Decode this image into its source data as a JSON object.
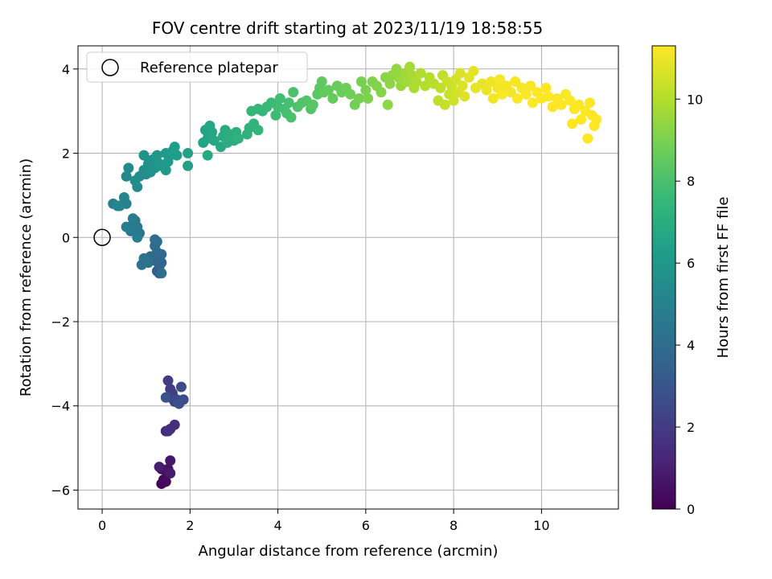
{
  "chart_data": {
    "type": "scatter",
    "title": "FOV centre drift starting at 2023/11/19 18:58:55",
    "xlabel": "Angular distance from reference (arcmin)",
    "ylabel": "Rotation from reference (arcmin)",
    "colorbar_label": "Hours from first FF file",
    "colormap": "viridis",
    "xlim": [
      -0.55,
      11.75
    ],
    "ylim": [
      -6.45,
      4.55
    ],
    "clim": [
      0,
      11.3
    ],
    "xticks": [
      0,
      2,
      4,
      6,
      8,
      10
    ],
    "xtick_labels": [
      "0",
      "2",
      "4",
      "6",
      "8",
      "10"
    ],
    "yticks": [
      -6,
      -4,
      -2,
      0,
      2,
      4
    ],
    "ytick_labels": [
      "−6",
      "−4",
      "−2",
      "0",
      "2",
      "4"
    ],
    "cticks": [
      0,
      2,
      4,
      6,
      8,
      10
    ],
    "ctick_labels": [
      "0",
      "2",
      "4",
      "6",
      "8",
      "10"
    ],
    "grid": true,
    "legend": {
      "placement": "top-left",
      "entries": [
        {
          "label": "Reference platepar",
          "marker": "open-circle"
        }
      ]
    },
    "reference_point": {
      "x": 0,
      "y": 0
    },
    "points": [
      {
        "x": 1.35,
        "y": -5.85,
        "t": 0.1
      },
      {
        "x": 1.4,
        "y": -5.75,
        "t": 0.2
      },
      {
        "x": 1.45,
        "y": -5.8,
        "t": 0.3
      },
      {
        "x": 1.35,
        "y": -5.5,
        "t": 0.4
      },
      {
        "x": 1.45,
        "y": -5.55,
        "t": 0.5
      },
      {
        "x": 1.5,
        "y": -5.5,
        "t": 0.6
      },
      {
        "x": 1.55,
        "y": -5.3,
        "t": 0.7
      },
      {
        "x": 1.55,
        "y": -5.6,
        "t": 0.8
      },
      {
        "x": 1.3,
        "y": -5.45,
        "t": 0.9
      },
      {
        "x": 1.45,
        "y": -4.6,
        "t": 1.3
      },
      {
        "x": 1.55,
        "y": -4.55,
        "t": 1.4
      },
      {
        "x": 1.65,
        "y": -4.45,
        "t": 1.5
      },
      {
        "x": 1.5,
        "y": -4.6,
        "t": 1.6
      },
      {
        "x": 1.5,
        "y": -3.4,
        "t": 2.0
      },
      {
        "x": 1.55,
        "y": -3.6,
        "t": 2.1
      },
      {
        "x": 1.6,
        "y": -3.7,
        "t": 2.2
      },
      {
        "x": 1.55,
        "y": -3.8,
        "t": 2.3
      },
      {
        "x": 1.65,
        "y": -3.9,
        "t": 2.4
      },
      {
        "x": 1.7,
        "y": -3.85,
        "t": 2.5
      },
      {
        "x": 1.8,
        "y": -3.55,
        "t": 2.6
      },
      {
        "x": 1.85,
        "y": -3.85,
        "t": 2.7
      },
      {
        "x": 1.75,
        "y": -3.95,
        "t": 2.8
      },
      {
        "x": 1.45,
        "y": -3.8,
        "t": 2.9
      },
      {
        "x": 1.3,
        "y": -0.85,
        "t": 3.3
      },
      {
        "x": 1.25,
        "y": -0.8,
        "t": 3.4
      },
      {
        "x": 1.3,
        "y": -0.7,
        "t": 3.5
      },
      {
        "x": 1.35,
        "y": -0.6,
        "t": 3.6
      },
      {
        "x": 1.2,
        "y": -0.55,
        "t": 3.7
      },
      {
        "x": 1.3,
        "y": -0.45,
        "t": 3.75
      },
      {
        "x": 1.35,
        "y": -0.4,
        "t": 3.8
      },
      {
        "x": 1.1,
        "y": -0.45,
        "t": 3.85
      },
      {
        "x": 1.25,
        "y": -0.35,
        "t": 3.9
      },
      {
        "x": 1.2,
        "y": -0.2,
        "t": 3.95
      },
      {
        "x": 1.25,
        "y": -0.1,
        "t": 4.0
      },
      {
        "x": 1.2,
        "y": -0.05,
        "t": 4.05
      },
      {
        "x": 1.35,
        "y": -0.85,
        "t": 4.1
      },
      {
        "x": 0.9,
        "y": -0.65,
        "t": 4.2
      },
      {
        "x": 0.95,
        "y": -0.5,
        "t": 4.25
      },
      {
        "x": 1.05,
        "y": -0.6,
        "t": 4.3
      },
      {
        "x": 0.85,
        "y": 0.1,
        "t": 4.4
      },
      {
        "x": 0.8,
        "y": 0.25,
        "t": 4.5
      },
      {
        "x": 0.75,
        "y": 0.4,
        "t": 4.55
      },
      {
        "x": 0.7,
        "y": 0.3,
        "t": 4.6
      },
      {
        "x": 0.65,
        "y": 0.15,
        "t": 4.65
      },
      {
        "x": 0.55,
        "y": 0.25,
        "t": 4.7
      },
      {
        "x": 0.7,
        "y": 0.45,
        "t": 4.75
      },
      {
        "x": 0.8,
        "y": 0.0,
        "t": 4.8
      },
      {
        "x": 0.25,
        "y": 0.8,
        "t": 4.9
      },
      {
        "x": 0.4,
        "y": 0.75,
        "t": 5.0
      },
      {
        "x": 0.55,
        "y": 0.8,
        "t": 5.05
      },
      {
        "x": 0.5,
        "y": 0.95,
        "t": 5.1
      },
      {
        "x": 0.35,
        "y": 0.75,
        "t": 5.15
      },
      {
        "x": 0.55,
        "y": 1.45,
        "t": 5.3
      },
      {
        "x": 0.6,
        "y": 1.65,
        "t": 5.35
      },
      {
        "x": 0.8,
        "y": 1.2,
        "t": 5.4
      },
      {
        "x": 0.85,
        "y": 1.45,
        "t": 5.45
      },
      {
        "x": 0.75,
        "y": 1.35,
        "t": 5.5
      },
      {
        "x": 0.95,
        "y": 1.6,
        "t": 5.55
      },
      {
        "x": 1.0,
        "y": 1.5,
        "t": 5.6
      },
      {
        "x": 1.05,
        "y": 1.75,
        "t": 5.65
      },
      {
        "x": 1.1,
        "y": 1.55,
        "t": 5.7
      },
      {
        "x": 0.95,
        "y": 1.95,
        "t": 5.75
      },
      {
        "x": 1.15,
        "y": 1.85,
        "t": 5.8
      },
      {
        "x": 1.2,
        "y": 1.65,
        "t": 5.85
      },
      {
        "x": 1.3,
        "y": 1.75,
        "t": 5.9
      },
      {
        "x": 1.25,
        "y": 1.95,
        "t": 5.95
      },
      {
        "x": 1.35,
        "y": 1.7,
        "t": 6.0
      },
      {
        "x": 1.45,
        "y": 1.6,
        "t": 6.05
      },
      {
        "x": 1.5,
        "y": 1.8,
        "t": 6.1
      },
      {
        "x": 1.45,
        "y": 2.0,
        "t": 6.15
      },
      {
        "x": 1.55,
        "y": 1.95,
        "t": 6.2
      },
      {
        "x": 1.6,
        "y": 2.05,
        "t": 6.25
      },
      {
        "x": 1.65,
        "y": 2.15,
        "t": 6.3
      },
      {
        "x": 1.7,
        "y": 1.95,
        "t": 6.35
      },
      {
        "x": 1.95,
        "y": 1.7,
        "t": 6.4
      },
      {
        "x": 1.95,
        "y": 2.0,
        "t": 6.45
      },
      {
        "x": 2.3,
        "y": 2.25,
        "t": 6.5
      },
      {
        "x": 2.35,
        "y": 2.55,
        "t": 6.55
      },
      {
        "x": 2.4,
        "y": 2.35,
        "t": 6.6
      },
      {
        "x": 2.45,
        "y": 2.65,
        "t": 6.65
      },
      {
        "x": 2.5,
        "y": 2.5,
        "t": 6.7
      },
      {
        "x": 2.55,
        "y": 2.3,
        "t": 6.75
      },
      {
        "x": 2.4,
        "y": 1.95,
        "t": 6.8
      },
      {
        "x": 2.7,
        "y": 2.15,
        "t": 6.85
      },
      {
        "x": 2.75,
        "y": 2.4,
        "t": 6.9
      },
      {
        "x": 2.8,
        "y": 2.55,
        "t": 6.95
      },
      {
        "x": 2.85,
        "y": 2.25,
        "t": 7.0
      },
      {
        "x": 2.9,
        "y": 2.45,
        "t": 7.05
      },
      {
        "x": 3.0,
        "y": 2.3,
        "t": 7.1
      },
      {
        "x": 3.05,
        "y": 2.5,
        "t": 7.15
      },
      {
        "x": 3.1,
        "y": 2.35,
        "t": 7.2
      },
      {
        "x": 3.3,
        "y": 2.45,
        "t": 7.25
      },
      {
        "x": 3.35,
        "y": 2.6,
        "t": 7.3
      },
      {
        "x": 3.45,
        "y": 2.7,
        "t": 7.35
      },
      {
        "x": 3.55,
        "y": 2.55,
        "t": 7.4
      },
      {
        "x": 3.4,
        "y": 3.0,
        "t": 7.45
      },
      {
        "x": 3.55,
        "y": 3.05,
        "t": 7.5
      },
      {
        "x": 3.65,
        "y": 3.0,
        "t": 7.55
      },
      {
        "x": 3.75,
        "y": 3.1,
        "t": 7.6
      },
      {
        "x": 3.85,
        "y": 3.2,
        "t": 7.65
      },
      {
        "x": 3.95,
        "y": 2.9,
        "t": 7.7
      },
      {
        "x": 4.0,
        "y": 3.1,
        "t": 7.75
      },
      {
        "x": 4.05,
        "y": 3.3,
        "t": 7.8
      },
      {
        "x": 4.15,
        "y": 3.05,
        "t": 7.85
      },
      {
        "x": 4.2,
        "y": 2.95,
        "t": 7.9
      },
      {
        "x": 4.25,
        "y": 3.2,
        "t": 7.95
      },
      {
        "x": 4.3,
        "y": 2.85,
        "t": 8.0
      },
      {
        "x": 4.35,
        "y": 3.45,
        "t": 8.05
      },
      {
        "x": 4.45,
        "y": 3.1,
        "t": 8.1
      },
      {
        "x": 4.55,
        "y": 3.2,
        "t": 8.15
      },
      {
        "x": 4.65,
        "y": 3.25,
        "t": 8.2
      },
      {
        "x": 4.75,
        "y": 3.05,
        "t": 8.25
      },
      {
        "x": 4.8,
        "y": 3.15,
        "t": 8.3
      },
      {
        "x": 4.9,
        "y": 3.4,
        "t": 8.35
      },
      {
        "x": 4.95,
        "y": 3.55,
        "t": 8.4
      },
      {
        "x": 5.0,
        "y": 3.7,
        "t": 8.45
      },
      {
        "x": 5.05,
        "y": 3.45,
        "t": 8.5
      },
      {
        "x": 5.15,
        "y": 3.5,
        "t": 8.55
      },
      {
        "x": 5.25,
        "y": 3.3,
        "t": 8.6
      },
      {
        "x": 5.35,
        "y": 3.6,
        "t": 8.65
      },
      {
        "x": 5.45,
        "y": 3.45,
        "t": 8.7
      },
      {
        "x": 5.55,
        "y": 3.55,
        "t": 8.75
      },
      {
        "x": 5.65,
        "y": 3.4,
        "t": 8.8
      },
      {
        "x": 5.75,
        "y": 3.15,
        "t": 8.85
      },
      {
        "x": 5.85,
        "y": 3.3,
        "t": 8.9
      },
      {
        "x": 5.9,
        "y": 3.7,
        "t": 8.95
      },
      {
        "x": 6.0,
        "y": 3.5,
        "t": 9.0
      },
      {
        "x": 6.05,
        "y": 3.3,
        "t": 9.05
      },
      {
        "x": 6.15,
        "y": 3.7,
        "t": 9.1
      },
      {
        "x": 6.25,
        "y": 3.6,
        "t": 9.15
      },
      {
        "x": 6.35,
        "y": 3.45,
        "t": 9.2
      },
      {
        "x": 6.45,
        "y": 3.8,
        "t": 9.25
      },
      {
        "x": 6.5,
        "y": 3.15,
        "t": 9.3
      },
      {
        "x": 6.55,
        "y": 3.65,
        "t": 9.35
      },
      {
        "x": 6.6,
        "y": 3.85,
        "t": 9.4
      },
      {
        "x": 6.7,
        "y": 4.0,
        "t": 9.45
      },
      {
        "x": 6.75,
        "y": 3.8,
        "t": 9.5
      },
      {
        "x": 6.8,
        "y": 3.6,
        "t": 9.55
      },
      {
        "x": 6.85,
        "y": 3.75,
        "t": 9.6
      },
      {
        "x": 6.9,
        "y": 3.9,
        "t": 9.65
      },
      {
        "x": 6.95,
        "y": 3.7,
        "t": 9.7
      },
      {
        "x": 7.0,
        "y": 4.05,
        "t": 9.75
      },
      {
        "x": 7.05,
        "y": 3.85,
        "t": 9.8
      },
      {
        "x": 7.1,
        "y": 3.55,
        "t": 9.85
      },
      {
        "x": 7.15,
        "y": 3.7,
        "t": 9.9
      },
      {
        "x": 7.25,
        "y": 3.9,
        "t": 9.95
      },
      {
        "x": 7.35,
        "y": 3.6,
        "t": 10.0
      },
      {
        "x": 7.45,
        "y": 3.8,
        "t": 10.05
      },
      {
        "x": 7.55,
        "y": 3.65,
        "t": 10.1
      },
      {
        "x": 7.65,
        "y": 3.25,
        "t": 10.15
      },
      {
        "x": 7.7,
        "y": 3.55,
        "t": 10.2
      },
      {
        "x": 7.75,
        "y": 3.85,
        "t": 10.25
      },
      {
        "x": 7.8,
        "y": 3.15,
        "t": 10.3
      },
      {
        "x": 7.85,
        "y": 3.7,
        "t": 10.35
      },
      {
        "x": 7.9,
        "y": 3.4,
        "t": 10.4
      },
      {
        "x": 7.95,
        "y": 3.6,
        "t": 10.45
      },
      {
        "x": 8.0,
        "y": 3.25,
        "t": 10.5
      },
      {
        "x": 8.05,
        "y": 3.75,
        "t": 10.55
      },
      {
        "x": 8.1,
        "y": 3.45,
        "t": 10.6
      },
      {
        "x": 8.15,
        "y": 3.9,
        "t": 10.65
      },
      {
        "x": 8.2,
        "y": 3.6,
        "t": 10.7
      },
      {
        "x": 8.25,
        "y": 3.35,
        "t": 10.75
      },
      {
        "x": 8.35,
        "y": 3.8,
        "t": 10.8
      },
      {
        "x": 8.45,
        "y": 3.95,
        "t": 10.85
      },
      {
        "x": 8.5,
        "y": 3.55,
        "t": 10.9
      },
      {
        "x": 8.65,
        "y": 3.65,
        "t": 10.95
      },
      {
        "x": 8.75,
        "y": 3.5,
        "t": 11.0
      },
      {
        "x": 8.85,
        "y": 3.7,
        "t": 11.05
      },
      {
        "x": 8.9,
        "y": 3.3,
        "t": 11.1
      },
      {
        "x": 9.0,
        "y": 3.55,
        "t": 11.15
      },
      {
        "x": 9.05,
        "y": 3.75,
        "t": 11.2
      },
      {
        "x": 9.1,
        "y": 3.4,
        "t": 11.25
      },
      {
        "x": 9.2,
        "y": 3.6,
        "t": 11.1
      },
      {
        "x": 9.3,
        "y": 3.45,
        "t": 11.15
      },
      {
        "x": 9.4,
        "y": 3.7,
        "t": 11.2
      },
      {
        "x": 9.45,
        "y": 3.3,
        "t": 11.25
      },
      {
        "x": 9.55,
        "y": 3.55,
        "t": 11.2
      },
      {
        "x": 9.65,
        "y": 3.4,
        "t": 11.25
      },
      {
        "x": 9.75,
        "y": 3.6,
        "t": 11.2
      },
      {
        "x": 9.8,
        "y": 3.2,
        "t": 11.25
      },
      {
        "x": 9.9,
        "y": 3.45,
        "t": 11.3
      },
      {
        "x": 10.0,
        "y": 3.3,
        "t": 11.25
      },
      {
        "x": 10.1,
        "y": 3.55,
        "t": 11.3
      },
      {
        "x": 10.15,
        "y": 3.35,
        "t": 11.25
      },
      {
        "x": 10.25,
        "y": 3.1,
        "t": 11.3
      },
      {
        "x": 10.35,
        "y": 3.3,
        "t": 11.25
      },
      {
        "x": 10.45,
        "y": 3.15,
        "t": 11.3
      },
      {
        "x": 10.55,
        "y": 3.4,
        "t": 11.25
      },
      {
        "x": 10.65,
        "y": 3.25,
        "t": 11.3
      },
      {
        "x": 10.7,
        "y": 2.7,
        "t": 11.3
      },
      {
        "x": 10.75,
        "y": 3.05,
        "t": 11.25
      },
      {
        "x": 10.85,
        "y": 3.15,
        "t": 11.3
      },
      {
        "x": 10.9,
        "y": 2.8,
        "t": 11.3
      },
      {
        "x": 11.0,
        "y": 3.0,
        "t": 11.25
      },
      {
        "x": 11.05,
        "y": 2.35,
        "t": 11.3
      },
      {
        "x": 11.1,
        "y": 3.2,
        "t": 11.3
      },
      {
        "x": 11.15,
        "y": 2.9,
        "t": 11.3
      },
      {
        "x": 11.2,
        "y": 2.65,
        "t": 11.3
      },
      {
        "x": 11.25,
        "y": 2.8,
        "t": 11.3
      }
    ]
  }
}
